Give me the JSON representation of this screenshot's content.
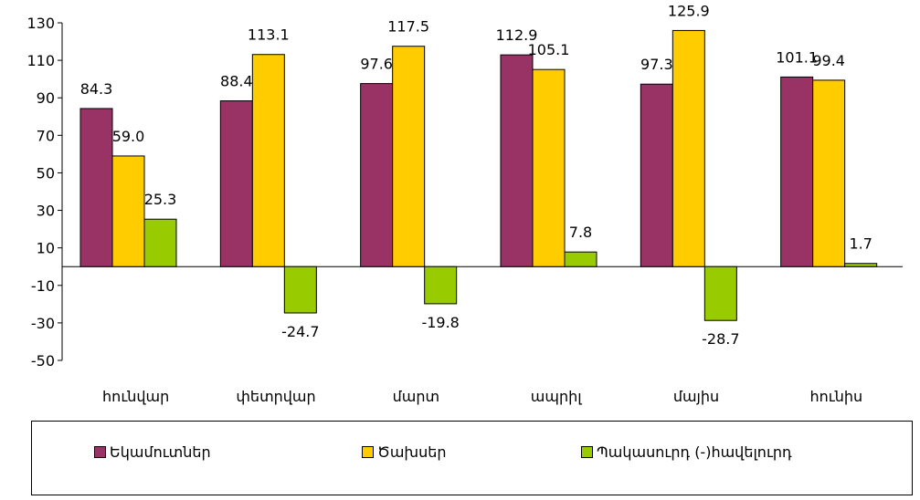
{
  "chart_data": {
    "type": "bar",
    "categories": [
      "հունվար",
      "փետրվար",
      "մարտ",
      "ապրիլ",
      "մայիս",
      "հունիս"
    ],
    "series": [
      {
        "name": "Եկամուտներ",
        "color": "#993366",
        "values": [
          84.3,
          88.4,
          97.6,
          112.9,
          97.3,
          101.1
        ]
      },
      {
        "name": "Ծախսեր",
        "color": "#FFCC00",
        "values": [
          59.0,
          113.1,
          117.5,
          105.1,
          125.9,
          99.4
        ]
      },
      {
        "name": "Պակասուրդ (-)հավելուրդ",
        "color": "#99CC00",
        "values": [
          25.3,
          -24.7,
          -19.8,
          7.8,
          -28.7,
          1.7
        ]
      }
    ],
    "yticks": [
      "130",
      "110",
      "90",
      "70",
      "50",
      "30",
      "10",
      "-10",
      "-30",
      "-50"
    ],
    "ylim": [
      -50,
      130
    ],
    "legend_position": "bottom",
    "grid": false
  }
}
